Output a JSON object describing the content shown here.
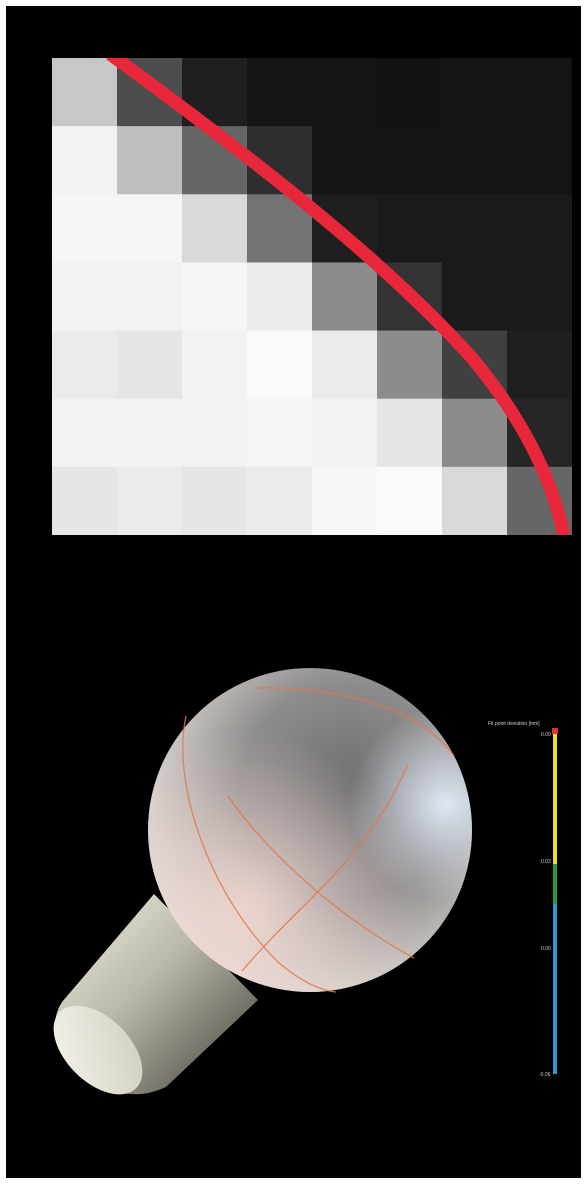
{
  "top_image": {
    "description_name": "pixelated-edge",
    "grid": {
      "rows": 7,
      "cols": 8,
      "gray_levels": [
        [
          0.78,
          0.3,
          0.12,
          0.08,
          0.08,
          0.07,
          0.08,
          0.08
        ],
        [
          0.95,
          0.75,
          0.4,
          0.18,
          0.08,
          0.08,
          0.08,
          0.08
        ],
        [
          0.96,
          0.96,
          0.85,
          0.45,
          0.12,
          0.1,
          0.1,
          0.1
        ],
        [
          0.95,
          0.95,
          0.96,
          0.92,
          0.55,
          0.2,
          0.1,
          0.1
        ],
        [
          0.92,
          0.9,
          0.95,
          0.98,
          0.92,
          0.55,
          0.25,
          0.12
        ],
        [
          0.95,
          0.95,
          0.95,
          0.96,
          0.95,
          0.9,
          0.55,
          0.15
        ],
        [
          0.9,
          0.92,
          0.9,
          0.92,
          0.97,
          0.98,
          0.85,
          0.4
        ]
      ]
    },
    "curve_color": "#e8273a"
  },
  "bottom_image": {
    "sphere_color": "#d9d6d2",
    "cylinder_color": "#e5e3d5",
    "fit_line_color": "#e0784a"
  },
  "legend": {
    "title": "Fit point deviation [mm]",
    "ticks": [
      {
        "label": "0.09",
        "position": 0.0
      },
      {
        "label": "0.03",
        "position": 0.34
      },
      {
        "label": "0.00",
        "position": 0.62
      },
      {
        "label": "-0.06",
        "position": 1.0
      }
    ],
    "colors": [
      "#e03030",
      "#e8e020",
      "#2a9a3a",
      "#2f9ad0"
    ]
  }
}
